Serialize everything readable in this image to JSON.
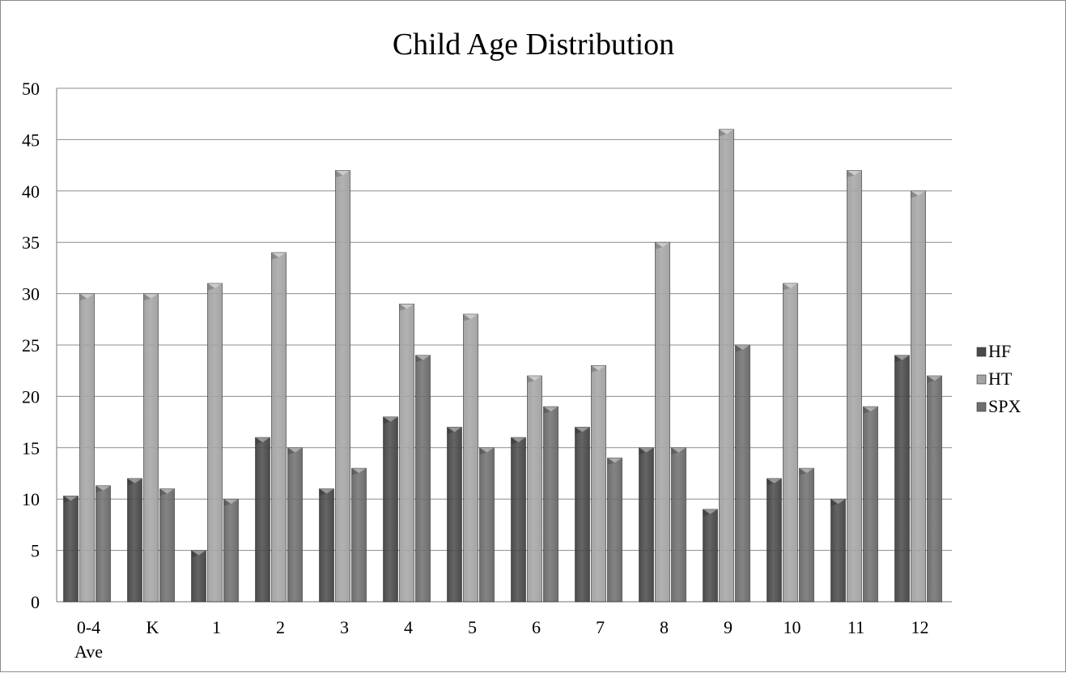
{
  "chart_data": {
    "type": "bar",
    "title": "Child Age Distribution",
    "xlabel": "",
    "ylabel": "",
    "ylim": [
      0,
      50
    ],
    "yticks": [
      0,
      5,
      10,
      15,
      20,
      25,
      30,
      35,
      40,
      45,
      50
    ],
    "categories": [
      [
        "0-4",
        "Ave"
      ],
      [
        "K"
      ],
      [
        "1"
      ],
      [
        "2"
      ],
      [
        "3"
      ],
      [
        "4"
      ],
      [
        "5"
      ],
      [
        "6"
      ],
      [
        "7"
      ],
      [
        "8"
      ],
      [
        "9"
      ],
      [
        "10"
      ],
      [
        "11"
      ],
      [
        "12"
      ]
    ],
    "series": [
      {
        "name": "HF",
        "color": "#4a4a4a",
        "values": [
          10.3,
          12,
          5,
          16,
          11,
          18,
          17,
          16,
          17,
          15,
          9,
          12,
          10,
          24
        ]
      },
      {
        "name": "HT",
        "color": "#a4a4a4",
        "values": [
          30,
          30,
          31,
          34,
          42,
          29,
          28,
          22,
          23,
          35,
          46,
          31,
          42,
          40
        ]
      },
      {
        "name": "SPX",
        "color": "#6e6e6e",
        "values": [
          11.3,
          11,
          10,
          15,
          13,
          24,
          15,
          19,
          14,
          15,
          25,
          13,
          19,
          22
        ]
      }
    ],
    "grid": true,
    "legend": "right"
  }
}
